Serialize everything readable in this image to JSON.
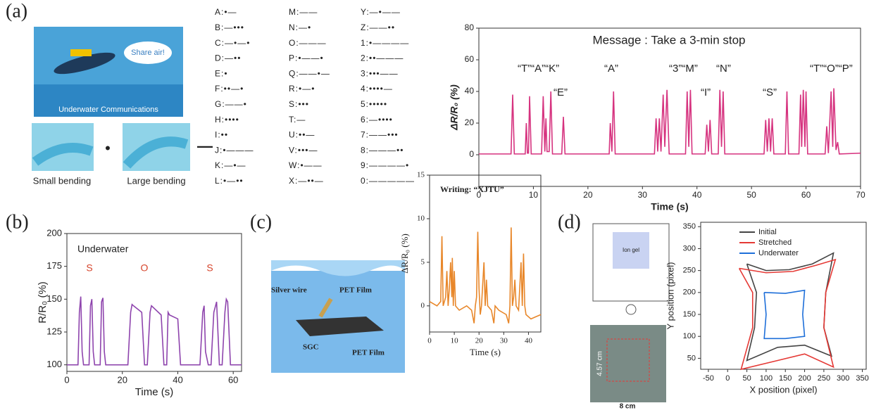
{
  "panel_labels": [
    "(a)",
    "(b)",
    "(c)",
    "(d)"
  ],
  "illustration": {
    "bubble": "Share air!",
    "caption": "Underwater Communications"
  },
  "bending": {
    "small": "Small bending",
    "large": "Large bending",
    "dot": "•",
    "dash": "—"
  },
  "morse": {
    "columns": [
      [
        "A:•—",
        "B:—•••",
        "C:—•—•",
        "D:—••",
        "E:•",
        "F:••—•",
        "G:——•",
        "H:••••",
        "I:••",
        "J:•———",
        "K:—•—",
        "L:•—••"
      ],
      [
        "M:——",
        "N:—•",
        "O:———",
        "P:•——•",
        "Q:——•—",
        "R:•—•",
        "S:•••",
        "T:—",
        "U:••—",
        "V:•••—",
        "W:•——",
        "X:—••—"
      ],
      [
        "Y:—•——",
        "Z:——••",
        "1:•————",
        "2:••———",
        "3:•••——",
        "4:••••—",
        "5:•••••",
        "6:—••••",
        "7:——•••",
        "8:———••",
        "9:————•",
        "0:—————"
      ]
    ]
  },
  "diagram_c": {
    "labels": [
      "Silver wire",
      "PET Film",
      "SGC",
      "PET Film"
    ]
  },
  "circuit_d": {
    "label": "Ion gel",
    "photo_height": "4.57 cm",
    "photo_width": "8 cm"
  },
  "chart_data": [
    {
      "type": "line",
      "x_label": "Time (s)",
      "y_label": "ΔR/R₀ (%)",
      "annotations": [
        "Message : Take a 3-min stop",
        "“T”“A”“K”",
        "“E”",
        "“A”",
        "“3”“M”",
        "“N”",
        "“I”",
        "“S”",
        "“T”“O”“P”"
      ],
      "xlim": [
        0,
        70
      ],
      "ylim": [
        -20,
        80
      ],
      "xticks": [
        0,
        10,
        20,
        30,
        40,
        50,
        60,
        70
      ],
      "yticks": [
        0,
        20,
        40,
        60,
        80
      ],
      "color": "#d6337f",
      "x": [
        0,
        5.9,
        6.2,
        6.5,
        8.5,
        8.7,
        8.9,
        9.1,
        9.3,
        9.6,
        11.5,
        11.8,
        12.1,
        12.3,
        12.5,
        12.9,
        13.2,
        13.5,
        15.2,
        15.5,
        15.8,
        23.9,
        24.1,
        24.4,
        24.7,
        25,
        32.2,
        32.5,
        32.8,
        33.1,
        33.4,
        33.8,
        34.1,
        34.5,
        34.9,
        37.9,
        38.2,
        38.5,
        38.8,
        39.1,
        41.5,
        41.8,
        42.1,
        42.4,
        42.7,
        43.9,
        44.2,
        44.5,
        44.8,
        45.1,
        52.3,
        52.6,
        52.9,
        53.2,
        53.5,
        53.8,
        54.1,
        56.2,
        56.5,
        56.8,
        58.7,
        59,
        59.2,
        59.5,
        59.8,
        60,
        60.3,
        63.5,
        63.8,
        64.1,
        64.6,
        64.9,
        65.1,
        65.5,
        65.8,
        66.1,
        70
      ],
      "values": [
        0.5,
        0.5,
        38,
        0.5,
        0.5,
        20,
        1,
        1,
        37,
        0.5,
        0.5,
        37,
        2,
        23,
        2,
        2,
        40,
        0.5,
        0.5,
        24,
        0.5,
        0.5,
        20,
        2,
        40,
        0.5,
        0.5,
        23,
        2,
        23,
        2,
        38,
        5,
        41,
        0.5,
        0.5,
        40,
        5,
        41,
        0.5,
        0.5,
        19,
        2,
        22,
        0.5,
        0.5,
        41,
        5,
        40,
        0.5,
        0.5,
        22,
        2,
        23,
        2,
        23,
        0.5,
        0.5,
        40,
        0.5,
        0.5,
        38,
        5,
        41,
        5,
        40,
        0.5,
        0.5,
        18,
        1,
        40,
        5,
        42,
        3,
        8,
        0.5,
        1
      ]
    },
    {
      "type": "line",
      "x_label": "Time (s)",
      "y_label": "R/R₀ (%)",
      "annotations": [
        "Underwater",
        "S",
        "O",
        "S"
      ],
      "xlim": [
        0,
        63
      ],
      "ylim": [
        95,
        200
      ],
      "xticks": [
        0,
        20,
        40,
        60
      ],
      "yticks": [
        100,
        125,
        150,
        175,
        200
      ],
      "color": "#8e44ad",
      "x": [
        0,
        4,
        4.5,
        5,
        5.5,
        6,
        8,
        8.5,
        9,
        9.5,
        10,
        12,
        12.5,
        13,
        13.5,
        14,
        22,
        23,
        23.5,
        24,
        27,
        28,
        29,
        30,
        30.5,
        34,
        35,
        36,
        36.5,
        37,
        40,
        41,
        48,
        49,
        49.5,
        50,
        51,
        52,
        53,
        54,
        55,
        56,
        57,
        57.5,
        58,
        59,
        63
      ],
      "values": [
        100,
        100,
        140,
        152,
        110,
        100,
        100,
        145,
        150,
        110,
        100,
        100,
        148,
        151,
        110,
        100,
        100,
        140,
        146,
        145,
        140,
        100,
        100,
        140,
        145,
        138,
        100,
        100,
        140,
        138,
        135,
        100,
        100,
        140,
        145,
        110,
        100,
        100,
        140,
        148,
        100,
        100,
        140,
        150,
        148,
        100,
        100
      ]
    },
    {
      "type": "line",
      "x_label": "Time (s)",
      "y_label": "ΔR/R₀ (%)",
      "annotations": [
        "Writing: “XJTU”"
      ],
      "xlim": [
        0,
        45
      ],
      "ylim": [
        -3,
        15
      ],
      "xticks": [
        0,
        10,
        20,
        30,
        40
      ],
      "yticks": [
        0,
        5,
        10,
        15
      ],
      "color": "#e8872a",
      "x": [
        0,
        3,
        4.5,
        5,
        5.5,
        6.5,
        7,
        7.5,
        8,
        8.5,
        9,
        9.2,
        9.6,
        10,
        10.5,
        12,
        15,
        17,
        18,
        18.5,
        19,
        19.5,
        20,
        20.5,
        21,
        22,
        22.5,
        23,
        23.5,
        25,
        26,
        26.5,
        28,
        31,
        32,
        32.5,
        33,
        33.5,
        34,
        34.5,
        35,
        36,
        37,
        37.5,
        38,
        38.5,
        39,
        41,
        45
      ],
      "values": [
        0.5,
        0,
        0.5,
        8,
        0,
        1,
        4,
        0,
        2,
        5,
        1,
        5.5,
        0,
        4,
        0,
        -0.5,
        0,
        -0.5,
        -2,
        0,
        1,
        8.5,
        2,
        -1,
        0,
        5,
        0,
        3,
        0,
        -0.5,
        -2,
        0,
        -0.5,
        -1,
        -2,
        0,
        9,
        0,
        1,
        3,
        0,
        -0.5,
        5,
        0,
        6,
        0,
        -1,
        -1.5,
        -1
      ]
    },
    {
      "type": "line",
      "x_label": "X position (pixel)",
      "y_label": "Y position (pixel)",
      "legend": "upper left",
      "xlim": [
        -70,
        360
      ],
      "ylim": [
        25,
        360
      ],
      "xticks": [
        -50,
        0,
        50,
        100,
        150,
        200,
        250,
        300,
        350
      ],
      "yticks": [
        50,
        100,
        150,
        200,
        250,
        300,
        350
      ],
      "series": [
        {
          "name": "Initial",
          "color": "#444444",
          "x": [
            50,
            100,
            160,
            220,
            275,
            255,
            250,
            270,
            200,
            130,
            50,
            70,
            75,
            50
          ],
          "values": [
            265,
            250,
            252,
            265,
            290,
            200,
            120,
            55,
            80,
            75,
            45,
            120,
            200,
            265
          ]
        },
        {
          "name": "Stretched",
          "color": "#e53935",
          "x": [
            30,
            100,
            170,
            230,
            280,
            255,
            250,
            275,
            200,
            130,
            35,
            65,
            65,
            30
          ],
          "values": [
            255,
            245,
            248,
            262,
            275,
            200,
            120,
            30,
            60,
            45,
            25,
            120,
            200,
            255
          ]
        },
        {
          "name": "Underwater",
          "color": "#1e6fd9",
          "x": [
            95,
            150,
            200,
            195,
            200,
            150,
            95,
            100,
            95
          ],
          "values": [
            200,
            198,
            205,
            150,
            100,
            95,
            95,
            150,
            200
          ]
        }
      ]
    }
  ]
}
